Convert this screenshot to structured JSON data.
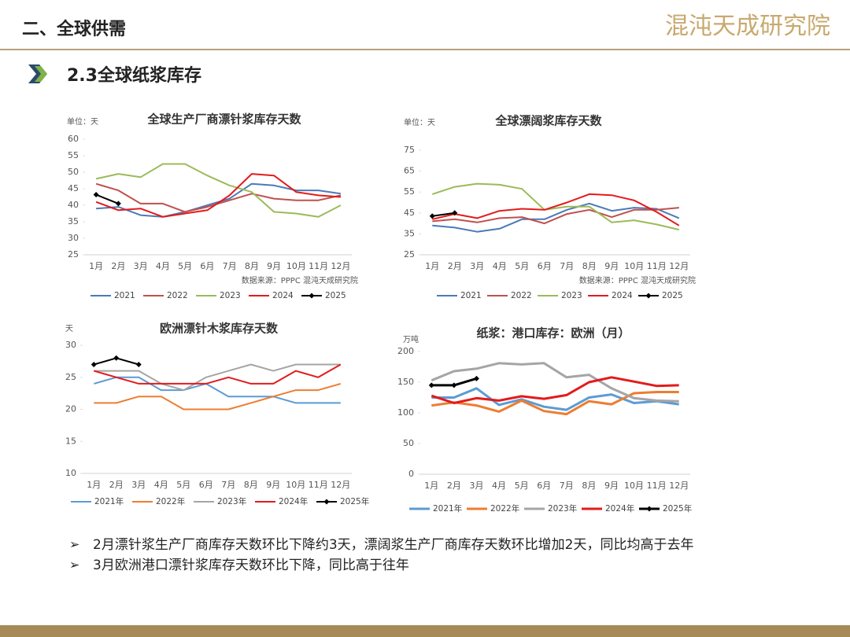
{
  "header": {
    "title": "二、全球供需",
    "logo": "混沌天成研究院"
  },
  "section": {
    "title": "2.3全球纸浆库存"
  },
  "chart_data": [
    {
      "type": "line",
      "title": "全球生产厂商漂针浆库存天数",
      "unit": "单位：天",
      "source": "数据来源：PPPC  混沌天成研究院",
      "categories": [
        "1月",
        "2月",
        "3月",
        "4月",
        "5月",
        "6月",
        "7月",
        "8月",
        "9月",
        "10月",
        "11月",
        "12月"
      ],
      "ylim": [
        25,
        60
      ],
      "yticks": [
        25,
        30,
        35,
        40,
        45,
        50,
        55,
        60
      ],
      "series": [
        {
          "name": "2021",
          "color": "#4a7ab8",
          "values": [
            39,
            39.5,
            37,
            36.5,
            38,
            40,
            42,
            46.5,
            46,
            44.5,
            44.5,
            43.5
          ]
        },
        {
          "name": "2022",
          "color": "#c0504d",
          "values": [
            46.5,
            44.5,
            40.5,
            40.5,
            38,
            39.5,
            41.5,
            43.5,
            42,
            41.5,
            41.5,
            43
          ]
        },
        {
          "name": "2023",
          "color": "#9bbb59",
          "values": [
            48,
            49.5,
            48.5,
            52.5,
            52.5,
            49,
            46,
            44,
            38,
            37.5,
            36.5,
            40
          ]
        },
        {
          "name": "2024",
          "color": "#e41a1c",
          "values": [
            41,
            38.5,
            39,
            36.5,
            37.5,
            38.5,
            43,
            49.5,
            49,
            44,
            43,
            42.5
          ]
        },
        {
          "name": "2025",
          "color": "#000000",
          "markers": true,
          "values": [
            43.2,
            40.5,
            null,
            null,
            null,
            null,
            null,
            null,
            null,
            null,
            null,
            null
          ]
        }
      ]
    },
    {
      "type": "line",
      "title": "全球漂阔浆库存天数",
      "unit": "单位：天",
      "source": "数据来源：PPPC  混沌天成研究院",
      "categories": [
        "1月",
        "2月",
        "3月",
        "4月",
        "5月",
        "6月",
        "7月",
        "8月",
        "9月",
        "10月",
        "11月",
        "12月"
      ],
      "ylim": [
        25,
        75
      ],
      "yticks": [
        25,
        35,
        45,
        55,
        65,
        75
      ],
      "series": [
        {
          "name": "2021",
          "color": "#4a7ab8",
          "values": [
            39,
            38,
            36,
            37.5,
            42,
            42,
            46.5,
            49.5,
            46,
            47.5,
            47,
            42.5
          ]
        },
        {
          "name": "2022",
          "color": "#c0504d",
          "values": [
            41,
            42,
            40.5,
            42.5,
            43,
            40,
            44.5,
            46.5,
            43,
            46.5,
            46.5,
            47.5
          ]
        },
        {
          "name": "2023",
          "color": "#9bbb59",
          "values": [
            54,
            57.5,
            59,
            58.5,
            56.5,
            46.5,
            48,
            48,
            40.5,
            41.5,
            39.5,
            37
          ]
        },
        {
          "name": "2024",
          "color": "#e41a1c",
          "values": [
            42,
            44.5,
            42.5,
            46,
            47,
            46.5,
            50,
            54,
            53.5,
            51,
            45.5,
            39
          ]
        },
        {
          "name": "2025",
          "color": "#000000",
          "markers": true,
          "values": [
            43.5,
            45,
            null,
            null,
            null,
            null,
            null,
            null,
            null,
            null,
            null,
            null
          ]
        }
      ]
    },
    {
      "type": "line",
      "title": "欧洲漂针木浆库存天数",
      "unit": "天",
      "categories": [
        "1月",
        "2月",
        "3月",
        "4月",
        "5月",
        "6月",
        "7月",
        "8月",
        "9月",
        "10月",
        "11月",
        "12月"
      ],
      "ylim": [
        10,
        30
      ],
      "yticks": [
        10,
        15,
        20,
        25,
        30
      ],
      "series": [
        {
          "name": "2021年",
          "color": "#5b9bd5",
          "values": [
            24,
            25,
            25,
            23,
            23,
            24,
            22,
            22,
            22,
            21,
            21,
            21
          ]
        },
        {
          "name": "2022年",
          "color": "#ed7d31",
          "values": [
            21,
            21,
            22,
            22,
            20,
            20,
            20,
            21,
            22,
            23,
            23,
            24
          ]
        },
        {
          "name": "2023年",
          "color": "#a5a5a5",
          "values": [
            26,
            26,
            26,
            24,
            23,
            25,
            26,
            27,
            26,
            27,
            27,
            27
          ]
        },
        {
          "name": "2024年",
          "color": "#e31a1c",
          "values": [
            26,
            25,
            24,
            24,
            24,
            24,
            25,
            24,
            24,
            26,
            25,
            27
          ]
        },
        {
          "name": "2025年",
          "color": "#000000",
          "markers": true,
          "values": [
            27,
            28,
            27,
            null,
            null,
            null,
            null,
            null,
            null,
            null,
            null,
            null
          ]
        }
      ]
    },
    {
      "type": "line",
      "title": "纸浆：港口库存：欧洲（月）",
      "unit": "万吨",
      "categories": [
        "1月",
        "2月",
        "3月",
        "4月",
        "5月",
        "6月",
        "7月",
        "8月",
        "9月",
        "10月",
        "11月",
        "12月"
      ],
      "ylim": [
        0,
        200
      ],
      "yticks": [
        0,
        50,
        100,
        150,
        200
      ],
      "series": [
        {
          "name": "2021年",
          "color": "#5b9bd5",
          "values": [
            125,
            125,
            140,
            113,
            122,
            110,
            105,
            125,
            130,
            116,
            119,
            114
          ]
        },
        {
          "name": "2022年",
          "color": "#ed7d31",
          "values": [
            112,
            117,
            112,
            102,
            120,
            103,
            98,
            119,
            114,
            132,
            134,
            134
          ]
        },
        {
          "name": "2023年",
          "color": "#a5a5a5",
          "values": [
            153,
            168,
            172,
            181,
            179,
            181,
            158,
            162,
            140,
            124,
            120,
            119
          ]
        },
        {
          "name": "2024年",
          "color": "#e31a1c",
          "values": [
            128,
            116,
            124,
            120,
            127,
            123,
            129,
            150,
            158,
            151,
            144,
            145
          ]
        },
        {
          "name": "2025年",
          "color": "#000000",
          "markers": true,
          "values": [
            145,
            145,
            156,
            null,
            null,
            null,
            null,
            null,
            null,
            null,
            null,
            null
          ]
        }
      ]
    }
  ],
  "bullets": [
    "2月漂针浆生产厂商库存天数环比下降约3天，漂阔浆生产厂商库存天数环比增加2天，同比均高于去年",
    "3月欧洲港口漂针浆库存天数环比下降，同比高于往年"
  ]
}
